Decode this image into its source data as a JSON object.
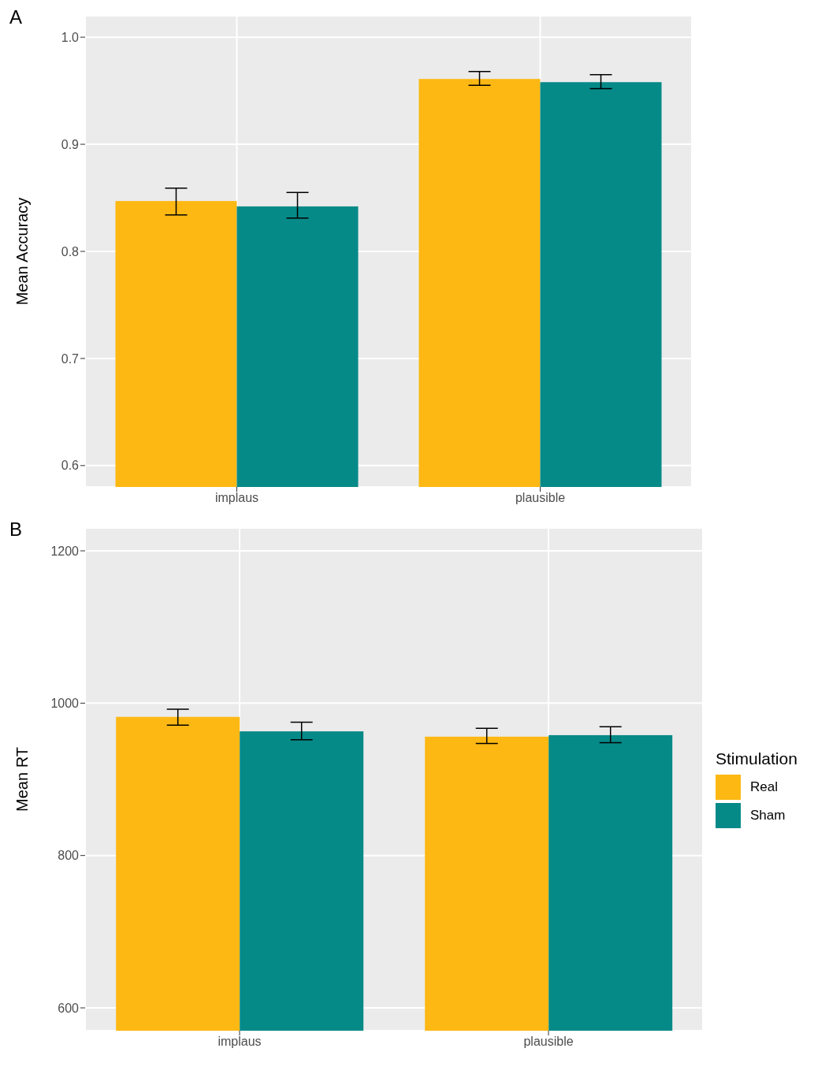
{
  "chart_data": [
    {
      "type": "bar",
      "title": "A",
      "categories": [
        "implaus",
        "plausible"
      ],
      "ylabel": "Mean Accuracy",
      "ylim": [
        0.58,
        1.02
      ],
      "yticks": [
        0.6,
        0.7,
        0.8,
        0.9,
        {
          "value": 1.0,
          "label": "1.0"
        }
      ],
      "grid": true,
      "legend": false,
      "series": [
        {
          "color": "#fdb813",
          "values": [
            0.847,
            0.961
          ],
          "errors": [
            [
              0.834,
              0.859
            ],
            [
              0.955,
              0.968
            ]
          ]
        },
        {
          "color": "#068a88",
          "values": [
            0.842,
            0.958
          ],
          "errors": [
            [
              0.831,
              0.855
            ],
            [
              0.952,
              0.965
            ]
          ]
        }
      ]
    },
    {
      "type": "bar",
      "title": "B",
      "categories": [
        "implaus",
        "plausible"
      ],
      "ylabel": "Mean RT",
      "ylim": [
        570,
        1230
      ],
      "yticks": [
        600,
        800,
        1000,
        1200
      ],
      "grid": true,
      "legend": "right",
      "legend_title": "Stimulation",
      "series": [
        {
          "name": "Real",
          "color": "#fdb813",
          "values": [
            982,
            956
          ],
          "errors": [
            [
              971,
              992
            ],
            [
              947,
              967
            ]
          ]
        },
        {
          "name": "Sham",
          "color": "#068a88",
          "values": [
            963,
            958
          ],
          "errors": [
            [
              952,
              975
            ],
            [
              948,
              969
            ]
          ]
        }
      ]
    }
  ]
}
